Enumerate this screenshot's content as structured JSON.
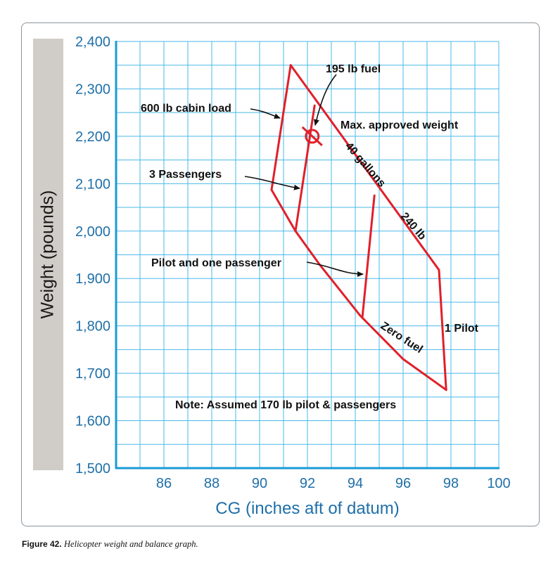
{
  "chart_data": {
    "type": "line",
    "xlabel": "CG (inches aft of datum)",
    "ylabel": "Weight (pounds)",
    "xlim": [
      84,
      100
    ],
    "ylim": [
      1500,
      2400
    ],
    "x_ticks": [
      86,
      88,
      90,
      92,
      94,
      96,
      98,
      100
    ],
    "x_tick_labels": [
      "86",
      "88",
      "90",
      "92",
      "94",
      "96",
      "98",
      "100"
    ],
    "y_ticks": [
      1500,
      1600,
      1700,
      1800,
      1900,
      2000,
      2100,
      2200,
      2300,
      2400
    ],
    "y_tick_labels": [
      "1,500",
      "1,600",
      "1,700",
      "1,800",
      "1,900",
      "2,000",
      "2,100",
      "2,200",
      "2,300",
      "2,400"
    ],
    "grid": true,
    "series": [
      {
        "name": "Max. approved weight",
        "points": [
          [
            91.3,
            2350
          ],
          [
            97.5,
            1918
          ]
        ]
      },
      {
        "name": "1 Pilot",
        "points": [
          [
            97.5,
            1918
          ],
          [
            97.8,
            1665
          ]
        ]
      },
      {
        "name": "Zero fuel",
        "points": [
          [
            97.8,
            1665
          ],
          [
            96.0,
            1730
          ],
          [
            94.2,
            1822
          ],
          [
            92.5,
            1930
          ],
          [
            91.5,
            2000
          ],
          [
            90.5,
            2087
          ]
        ]
      },
      {
        "name": "600 lb cabin load",
        "points": [
          [
            90.5,
            2087
          ],
          [
            91.3,
            2350
          ]
        ]
      },
      {
        "name": "3 Passengers",
        "points": [
          [
            91.5,
            2000
          ],
          [
            92.3,
            2265
          ]
        ]
      },
      {
        "name": "Pilot and one passenger",
        "points": [
          [
            94.3,
            1820
          ],
          [
            94.8,
            2075
          ]
        ]
      }
    ],
    "marker": {
      "label": "195 lb fuel",
      "x": 92.2,
      "y": 2200
    },
    "annotations": {
      "fuel": "195 lb fuel",
      "cabin": "600 lb cabin load",
      "max_weight": "Max. approved weight",
      "gallons": "40 gallons",
      "lb240": "240 lb",
      "three_pass": "3 Passengers",
      "pilot_pass": "Pilot and one passenger",
      "one_pilot": "1 Pilot",
      "zero_fuel": "Zero fuel",
      "note": "Note: Assumed 170 lb pilot & passengers"
    },
    "colors": {
      "line": "#e0202a",
      "grid": "#4ab8e8",
      "axis": "#1a9ad6",
      "tick_text": "#1f6fa8",
      "band": "#d0cdc8"
    }
  },
  "caption": {
    "figure": "Figure 42.",
    "text": "Helicopter weight and balance graph."
  }
}
